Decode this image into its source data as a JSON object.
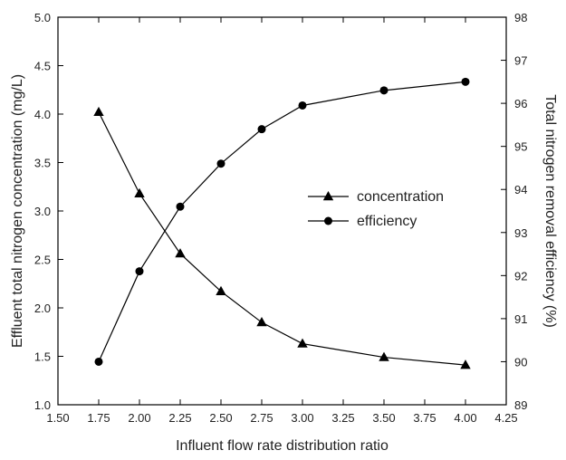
{
  "chart_data": {
    "type": "line",
    "x": [
      1.75,
      2.0,
      2.25,
      2.5,
      2.75,
      3.0,
      3.5,
      4.0
    ],
    "series": [
      {
        "name": "concentration",
        "axis": "left",
        "marker": "triangle",
        "values": [
          4.02,
          3.18,
          2.56,
          2.17,
          1.85,
          1.63,
          1.49,
          1.41
        ]
      },
      {
        "name": "efficiency",
        "axis": "right",
        "marker": "circle",
        "values": [
          90.0,
          92.1,
          93.6,
          94.6,
          95.4,
          95.95,
          96.3,
          96.5
        ]
      }
    ],
    "xlabel": "Influent flow rate distribution ratio",
    "ylabel": "Effluent total nitrogen concentration (mg/L)",
    "y2label": "Total nitrogen removal efficiency (%)",
    "xlim": [
      1.5,
      4.25
    ],
    "ylim": [
      1.0,
      5.0
    ],
    "y2lim": [
      89,
      98
    ],
    "xticks": [
      "1.50",
      "1.75",
      "2.00",
      "2.25",
      "2.50",
      "2.75",
      "3.00",
      "3.25",
      "3.50",
      "3.75",
      "4.00",
      "4.25"
    ],
    "yticks": [
      "1.0",
      "1.5",
      "2.0",
      "2.5",
      "3.0",
      "3.5",
      "4.0",
      "4.5",
      "5.0"
    ],
    "y2ticks": [
      "89",
      "90",
      "91",
      "92",
      "93",
      "94",
      "95",
      "96",
      "97",
      "98"
    ],
    "grid": false,
    "legend_position": "center-right",
    "line_color": "#000000"
  }
}
